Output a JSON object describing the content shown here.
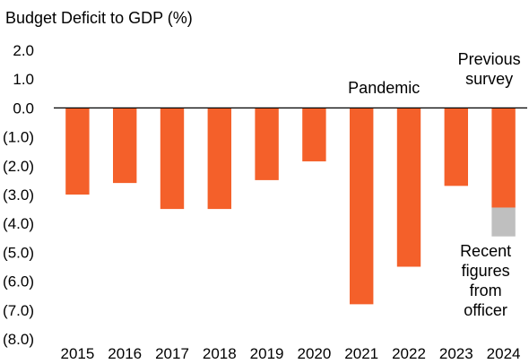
{
  "chart_data": {
    "type": "bar",
    "title": "Budget Deficit to GDP (%)",
    "xlabel": "",
    "ylabel": "",
    "categories": [
      "2015",
      "2016",
      "2017",
      "2018",
      "2019",
      "2020",
      "2021",
      "2022",
      "2023",
      "2024"
    ],
    "series": [
      {
        "values": [
          -3.0,
          -2.6,
          -3.5,
          -3.5,
          -2.5,
          -1.85,
          -6.8,
          -5.5,
          -2.7,
          -3.45
        ]
      }
    ],
    "overlay": {
      "category": "2024",
      "from": -3.45,
      "to": -4.45
    },
    "ylim": [
      -8.0,
      2.0
    ],
    "yticks": [
      2.0,
      1.0,
      0.0,
      -1.0,
      -2.0,
      -3.0,
      -4.0,
      -5.0,
      -6.0,
      -7.0,
      -8.0
    ],
    "ytick_labels": [
      "2.0",
      "1.0",
      "0.0",
      "(1.0)",
      "(2.0)",
      "(3.0)",
      "(4.0)",
      "(5.0)",
      "(6.0)",
      "(7.0)",
      "(8.0)"
    ],
    "grid": false,
    "colors": {
      "bar": "#F4602A",
      "overlay": "#BFBFBF",
      "axis": "#000000"
    },
    "annotations": {
      "pandemic": {
        "text": "Pandemic",
        "category": "2021",
        "y": 0.7
      },
      "previous_survey": {
        "lines": [
          "Previous",
          "survey"
        ],
        "category": "2024"
      },
      "recent_figures": {
        "lines": [
          "Recent",
          "figures",
          "from",
          "officer"
        ],
        "category": "2024"
      }
    }
  }
}
